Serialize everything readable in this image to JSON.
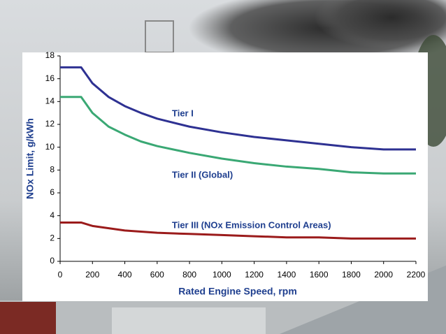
{
  "chart_data": {
    "type": "line",
    "x_label": "Rated Engine Speed, rpm",
    "y_label": "NOx Limit, g/kWh",
    "x": [
      0,
      130,
      200,
      300,
      400,
      500,
      600,
      800,
      1000,
      1200,
      1400,
      1600,
      1800,
      2000,
      2200
    ],
    "series": [
      {
        "name": "Tier I",
        "color": "#2e3192",
        "values": [
          17.0,
          17.0,
          15.6,
          14.4,
          13.6,
          13.0,
          12.5,
          11.8,
          11.3,
          10.9,
          10.6,
          10.3,
          10.0,
          9.8,
          9.8
        ]
      },
      {
        "name": "Tier II (Global)",
        "color": "#3aa874",
        "values": [
          14.4,
          14.4,
          13.0,
          11.8,
          11.1,
          10.5,
          10.1,
          9.5,
          9.0,
          8.6,
          8.3,
          8.1,
          7.8,
          7.7,
          7.7
        ]
      },
      {
        "name": "Tier III (NOx Emission Control Areas)",
        "color": "#9b1b1b",
        "values": [
          3.4,
          3.4,
          3.1,
          2.9,
          2.7,
          2.6,
          2.5,
          2.4,
          2.3,
          2.2,
          2.1,
          2.1,
          2.0,
          2.0,
          2.0
        ]
      }
    ],
    "xlim": [
      0,
      2200
    ],
    "xticks": [
      0,
      200,
      400,
      600,
      800,
      1000,
      1200,
      1400,
      1600,
      1800,
      2000,
      2200
    ],
    "ylim": [
      0,
      18
    ],
    "yticks": [
      0,
      2,
      4,
      6,
      8,
      10,
      12,
      14,
      16,
      18
    ],
    "grid": false
  }
}
